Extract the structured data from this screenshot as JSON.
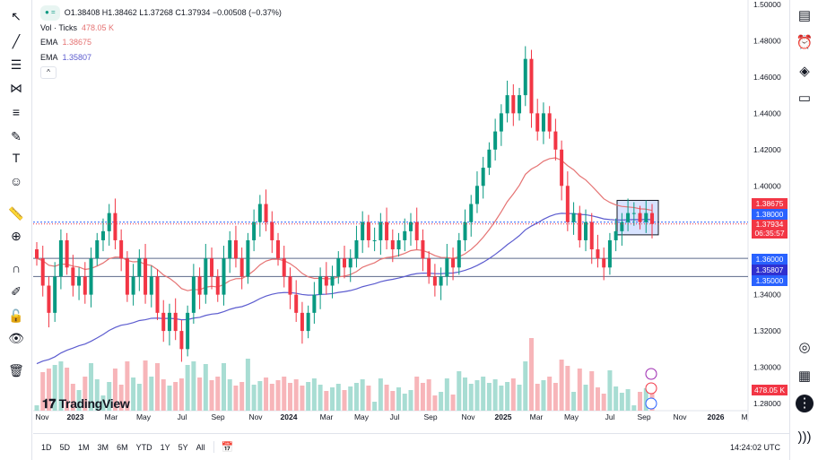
{
  "legend": {
    "ohlc": "O1.38408 H1.38462 L1.37268 C1.37934 −0.00508 (−0.37%)",
    "vol_label": "Vol · Ticks",
    "vol_value": "478.05 K",
    "ema1_label": "EMA",
    "ema1_value": "1.38675",
    "ema2_label": "EMA",
    "ema2_value": "1.35807",
    "collapse": "^"
  },
  "price_tags": {
    "ema1": "1.38675",
    "level_138": "1.38000",
    "last": "1.37934",
    "countdown": "06:35:57",
    "level_136": "1.36000",
    "ema2": "1.35807",
    "level_135": "1.35000",
    "volume": "478.05 K"
  },
  "colors": {
    "up": "#089981",
    "down": "#f23645",
    "ema1": "#e57373",
    "ema2": "#5c5ccf",
    "level": "#2962ff"
  },
  "branding": "TradingView",
  "timeframes": [
    "1D",
    "5D",
    "1M",
    "3M",
    "6M",
    "YTD",
    "1Y",
    "5Y",
    "All"
  ],
  "clock": "14:24:02 UTC",
  "chart_data": {
    "type": "candlestick",
    "symbol_period": "weekly",
    "ylim": [
      1.28,
      1.5
    ],
    "y_ticks": [
      "1.50000",
      "1.48000",
      "1.46000",
      "1.44000",
      "1.42000",
      "1.40000",
      "1.38000",
      "1.36000",
      "1.34000",
      "1.32000",
      "1.30000",
      "1.28000"
    ],
    "x_ticks": [
      "Nov",
      "2023",
      "Mar",
      "May",
      "Jul",
      "Sep",
      "Nov",
      "2024",
      "Mar",
      "May",
      "Jul",
      "Sep",
      "Nov",
      "2025",
      "Mar",
      "May",
      "Jul",
      "Sep",
      "Nov",
      "2026",
      "M"
    ],
    "closes": [
      1.36,
      1.345,
      1.33,
      1.35,
      1.37,
      1.355,
      1.345,
      1.35,
      1.34,
      1.36,
      1.37,
      1.375,
      1.385,
      1.37,
      1.36,
      1.34,
      1.35,
      1.36,
      1.34,
      1.35,
      1.33,
      1.32,
      1.33,
      1.32,
      1.31,
      1.33,
      1.35,
      1.34,
      1.36,
      1.35,
      1.34,
      1.36,
      1.37,
      1.36,
      1.35,
      1.37,
      1.38,
      1.39,
      1.38,
      1.37,
      1.36,
      1.35,
      1.34,
      1.33,
      1.32,
      1.33,
      1.34,
      1.35,
      1.345,
      1.35,
      1.36,
      1.355,
      1.36,
      1.37,
      1.38,
      1.37,
      1.37,
      1.38,
      1.37,
      1.365,
      1.37,
      1.375,
      1.38,
      1.37,
      1.36,
      1.35,
      1.345,
      1.35,
      1.36,
      1.355,
      1.37,
      1.38,
      1.39,
      1.4,
      1.41,
      1.42,
      1.43,
      1.44,
      1.45,
      1.44,
      1.45,
      1.47,
      1.44,
      1.43,
      1.44,
      1.43,
      1.42,
      1.4,
      1.38,
      1.385,
      1.37,
      1.38,
      1.365,
      1.36,
      1.355,
      1.37,
      1.375,
      1.38,
      1.385,
      1.385,
      1.38,
      1.385,
      1.379
    ],
    "horizontal_levels": [
      1.38,
      1.36,
      1.35
    ],
    "box": {
      "from_price": 1.392,
      "to_price": 1.373
    }
  }
}
